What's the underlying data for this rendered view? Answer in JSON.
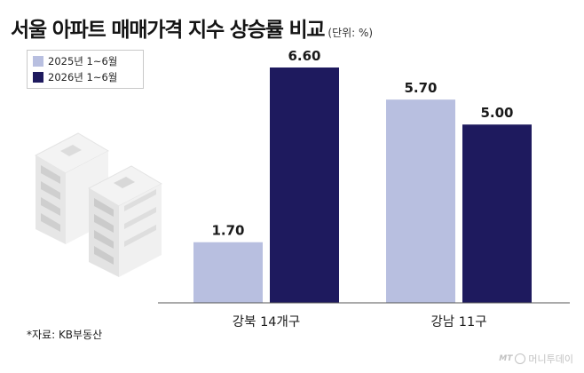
{
  "title": "서울 아파트 매매가격 지수 상승률 비교",
  "unit": "(단위: %)",
  "source": "*자료: KB부동산",
  "watermark": {
    "mt": "MT",
    "name": "머니투데이"
  },
  "colors": {
    "series_2025": "#b8bfe0",
    "series_2026": "#1e1a5e"
  },
  "chart_data": {
    "type": "bar",
    "categories": [
      "강북 14개구",
      "강남 11구"
    ],
    "series": [
      {
        "name": "2025년 1~6월",
        "values": [
          1.7,
          5.7
        ],
        "labels": [
          "1.70",
          "5.70"
        ]
      },
      {
        "name": "2026년 1~6월",
        "values": [
          6.6,
          5.0
        ],
        "labels": [
          "6.60",
          "5.00"
        ]
      }
    ],
    "title": "서울 아파트 매매가격 지수 상승률 비교",
    "xlabel": "",
    "ylabel": "",
    "ylim": [
      0,
      6.6
    ],
    "grid": false,
    "legend": "top-left"
  }
}
